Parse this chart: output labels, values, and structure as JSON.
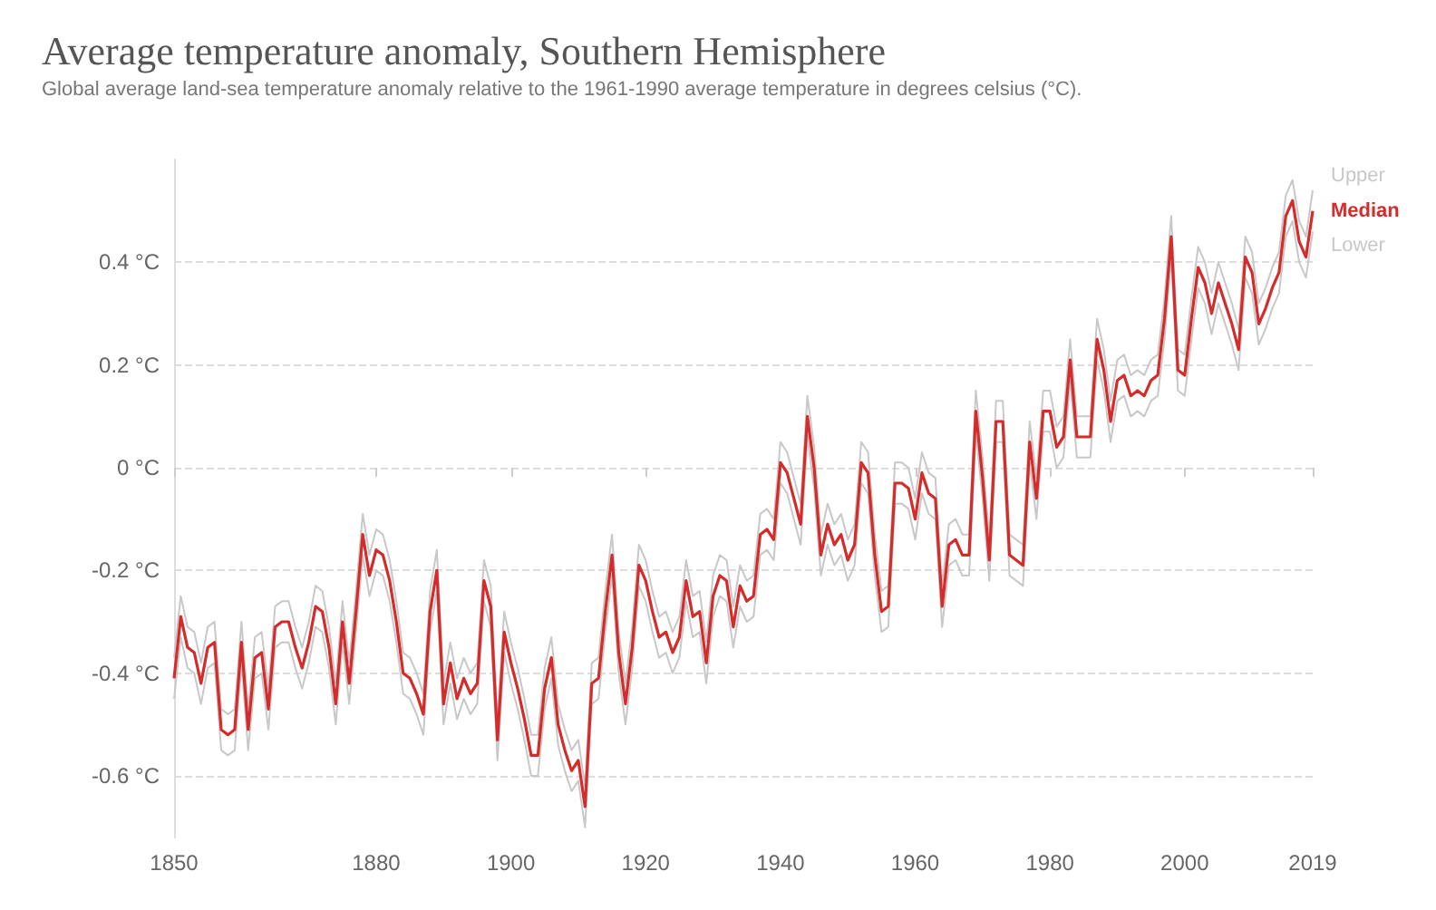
{
  "chart_data": {
    "type": "line",
    "title": "Average temperature anomaly, Southern Hemisphere",
    "subtitle": "Global average land-sea temperature anomaly relative to the 1961-1990 average temperature in degrees celsius (°C).",
    "x": [
      1850,
      1851,
      1852,
      1853,
      1854,
      1855,
      1856,
      1857,
      1858,
      1859,
      1860,
      1861,
      1862,
      1863,
      1864,
      1865,
      1866,
      1867,
      1868,
      1869,
      1870,
      1871,
      1872,
      1873,
      1874,
      1875,
      1876,
      1877,
      1878,
      1879,
      1880,
      1881,
      1882,
      1883,
      1884,
      1885,
      1886,
      1887,
      1888,
      1889,
      1890,
      1891,
      1892,
      1893,
      1894,
      1895,
      1896,
      1897,
      1898,
      1899,
      1900,
      1901,
      1902,
      1903,
      1904,
      1905,
      1906,
      1907,
      1908,
      1909,
      1910,
      1911,
      1912,
      1913,
      1914,
      1915,
      1916,
      1917,
      1918,
      1919,
      1920,
      1921,
      1922,
      1923,
      1924,
      1925,
      1926,
      1927,
      1928,
      1929,
      1930,
      1931,
      1932,
      1933,
      1934,
      1935,
      1936,
      1937,
      1938,
      1939,
      1940,
      1941,
      1942,
      1943,
      1944,
      1945,
      1946,
      1947,
      1948,
      1949,
      1950,
      1951,
      1952,
      1953,
      1954,
      1955,
      1956,
      1957,
      1958,
      1959,
      1960,
      1961,
      1962,
      1963,
      1964,
      1965,
      1966,
      1967,
      1968,
      1969,
      1970,
      1971,
      1972,
      1973,
      1974,
      1975,
      1976,
      1977,
      1978,
      1979,
      1980,
      1981,
      1982,
      1983,
      1984,
      1985,
      1986,
      1987,
      1988,
      1989,
      1990,
      1991,
      1992,
      1993,
      1994,
      1995,
      1996,
      1997,
      1998,
      1999,
      2000,
      2001,
      2002,
      2003,
      2004,
      2005,
      2006,
      2007,
      2008,
      2009,
      2010,
      2011,
      2012,
      2013,
      2014,
      2015,
      2016,
      2017,
      2018,
      2019
    ],
    "series": [
      {
        "name": "Upper",
        "color": "#c8c8c8",
        "values": [
          -0.37,
          -0.25,
          -0.31,
          -0.32,
          -0.38,
          -0.31,
          -0.3,
          -0.47,
          -0.48,
          -0.47,
          -0.3,
          -0.47,
          -0.33,
          -0.32,
          -0.43,
          -0.27,
          -0.26,
          -0.26,
          -0.31,
          -0.35,
          -0.3,
          -0.23,
          -0.24,
          -0.31,
          -0.42,
          -0.26,
          -0.38,
          -0.24,
          -0.09,
          -0.17,
          -0.12,
          -0.13,
          -0.18,
          -0.26,
          -0.36,
          -0.37,
          -0.4,
          -0.44,
          -0.24,
          -0.16,
          -0.42,
          -0.34,
          -0.41,
          -0.37,
          -0.4,
          -0.38,
          -0.18,
          -0.23,
          -0.49,
          -0.28,
          -0.34,
          -0.39,
          -0.45,
          -0.52,
          -0.52,
          -0.39,
          -0.33,
          -0.46,
          -0.51,
          -0.55,
          -0.53,
          -0.62,
          -0.38,
          -0.37,
          -0.24,
          -0.13,
          -0.32,
          -0.42,
          -0.31,
          -0.15,
          -0.18,
          -0.24,
          -0.29,
          -0.28,
          -0.32,
          -0.29,
          -0.18,
          -0.25,
          -0.24,
          -0.34,
          -0.21,
          -0.17,
          -0.18,
          -0.27,
          -0.19,
          -0.22,
          -0.21,
          -0.09,
          -0.08,
          -0.1,
          0.05,
          0.03,
          -0.02,
          -0.07,
          0.14,
          0.04,
          -0.13,
          -0.07,
          -0.11,
          -0.09,
          -0.14,
          -0.11,
          0.05,
          0.03,
          -0.13,
          -0.24,
          -0.23,
          0.01,
          0.01,
          0.0,
          -0.06,
          0.03,
          -0.01,
          -0.02,
          -0.23,
          -0.11,
          -0.1,
          -0.13,
          -0.13,
          0.15,
          0.02,
          -0.14,
          0.13,
          0.13,
          -0.13,
          -0.14,
          -0.15,
          0.09,
          -0.02,
          0.15,
          0.15,
          0.08,
          0.1,
          0.25,
          0.1,
          0.1,
          0.1,
          0.29,
          0.23,
          0.13,
          0.21,
          0.22,
          0.18,
          0.19,
          0.18,
          0.21,
          0.22,
          0.33,
          0.49,
          0.23,
          0.22,
          0.33,
          0.43,
          0.4,
          0.34,
          0.4,
          0.36,
          0.32,
          0.27,
          0.45,
          0.42,
          0.32,
          0.35,
          0.39,
          0.42,
          0.53,
          0.56,
          0.48,
          0.45,
          0.54
        ]
      },
      {
        "name": "Median",
        "color": "#d42b2b",
        "values": [
          -0.41,
          -0.29,
          -0.35,
          -0.36,
          -0.42,
          -0.35,
          -0.34,
          -0.51,
          -0.52,
          -0.51,
          -0.34,
          -0.51,
          -0.37,
          -0.36,
          -0.47,
          -0.31,
          -0.3,
          -0.3,
          -0.35,
          -0.39,
          -0.34,
          -0.27,
          -0.28,
          -0.35,
          -0.46,
          -0.3,
          -0.42,
          -0.28,
          -0.13,
          -0.21,
          -0.16,
          -0.17,
          -0.22,
          -0.3,
          -0.4,
          -0.41,
          -0.44,
          -0.48,
          -0.28,
          -0.2,
          -0.46,
          -0.38,
          -0.45,
          -0.41,
          -0.44,
          -0.42,
          -0.22,
          -0.27,
          -0.53,
          -0.32,
          -0.38,
          -0.43,
          -0.49,
          -0.56,
          -0.56,
          -0.43,
          -0.37,
          -0.5,
          -0.55,
          -0.59,
          -0.57,
          -0.66,
          -0.42,
          -0.41,
          -0.28,
          -0.17,
          -0.36,
          -0.46,
          -0.35,
          -0.19,
          -0.22,
          -0.28,
          -0.33,
          -0.32,
          -0.36,
          -0.33,
          -0.22,
          -0.29,
          -0.28,
          -0.38,
          -0.25,
          -0.21,
          -0.22,
          -0.31,
          -0.23,
          -0.26,
          -0.25,
          -0.13,
          -0.12,
          -0.14,
          0.01,
          -0.01,
          -0.06,
          -0.11,
          0.1,
          0.0,
          -0.17,
          -0.11,
          -0.15,
          -0.13,
          -0.18,
          -0.15,
          0.01,
          -0.01,
          -0.17,
          -0.28,
          -0.27,
          -0.03,
          -0.03,
          -0.04,
          -0.1,
          -0.01,
          -0.05,
          -0.06,
          -0.27,
          -0.15,
          -0.14,
          -0.17,
          -0.17,
          0.11,
          -0.02,
          -0.18,
          0.09,
          0.09,
          -0.17,
          -0.18,
          -0.19,
          0.05,
          -0.06,
          0.11,
          0.11,
          0.04,
          0.06,
          0.21,
          0.06,
          0.06,
          0.06,
          0.25,
          0.19,
          0.09,
          0.17,
          0.18,
          0.14,
          0.15,
          0.14,
          0.17,
          0.18,
          0.29,
          0.45,
          0.19,
          0.18,
          0.29,
          0.39,
          0.36,
          0.3,
          0.36,
          0.32,
          0.28,
          0.23,
          0.41,
          0.38,
          0.28,
          0.31,
          0.35,
          0.38,
          0.49,
          0.52,
          0.44,
          0.41,
          0.5
        ]
      },
      {
        "name": "Lower",
        "color": "#c8c8c8",
        "values": [
          -0.45,
          -0.33,
          -0.39,
          -0.4,
          -0.46,
          -0.39,
          -0.38,
          -0.55,
          -0.56,
          -0.55,
          -0.38,
          -0.55,
          -0.41,
          -0.4,
          -0.51,
          -0.35,
          -0.34,
          -0.34,
          -0.39,
          -0.43,
          -0.38,
          -0.31,
          -0.32,
          -0.39,
          -0.5,
          -0.34,
          -0.46,
          -0.32,
          -0.17,
          -0.25,
          -0.2,
          -0.21,
          -0.26,
          -0.34,
          -0.44,
          -0.45,
          -0.48,
          -0.52,
          -0.32,
          -0.24,
          -0.5,
          -0.42,
          -0.49,
          -0.45,
          -0.48,
          -0.46,
          -0.26,
          -0.31,
          -0.57,
          -0.36,
          -0.42,
          -0.47,
          -0.53,
          -0.6,
          -0.6,
          -0.47,
          -0.41,
          -0.54,
          -0.59,
          -0.63,
          -0.61,
          -0.7,
          -0.46,
          -0.45,
          -0.32,
          -0.21,
          -0.4,
          -0.5,
          -0.39,
          -0.23,
          -0.26,
          -0.32,
          -0.37,
          -0.36,
          -0.4,
          -0.37,
          -0.26,
          -0.33,
          -0.32,
          -0.42,
          -0.29,
          -0.25,
          -0.26,
          -0.35,
          -0.27,
          -0.3,
          -0.29,
          -0.17,
          -0.16,
          -0.18,
          -0.03,
          -0.05,
          -0.1,
          -0.15,
          0.06,
          -0.04,
          -0.21,
          -0.15,
          -0.19,
          -0.17,
          -0.22,
          -0.19,
          -0.03,
          -0.05,
          -0.21,
          -0.32,
          -0.31,
          -0.07,
          -0.07,
          -0.08,
          -0.14,
          -0.05,
          -0.09,
          -0.1,
          -0.31,
          -0.19,
          -0.18,
          -0.21,
          -0.21,
          0.07,
          -0.06,
          -0.22,
          0.05,
          0.05,
          -0.21,
          -0.22,
          -0.23,
          0.01,
          -0.1,
          0.07,
          0.07,
          0.0,
          0.02,
          0.17,
          0.02,
          0.02,
          0.02,
          0.21,
          0.15,
          0.05,
          0.13,
          0.14,
          0.1,
          0.11,
          0.1,
          0.13,
          0.14,
          0.25,
          0.41,
          0.15,
          0.14,
          0.25,
          0.35,
          0.32,
          0.26,
          0.32,
          0.28,
          0.24,
          0.19,
          0.37,
          0.34,
          0.24,
          0.27,
          0.31,
          0.34,
          0.45,
          0.48,
          0.4,
          0.37,
          0.46
        ]
      }
    ],
    "xlim": [
      1850,
      2019
    ],
    "xticks": [
      1850,
      1880,
      1900,
      1920,
      1940,
      1960,
      1980,
      2000,
      2019
    ],
    "ylim": [
      -0.72,
      0.6
    ],
    "yticks": [
      {
        "value": -0.6,
        "label": "-0.6 °C"
      },
      {
        "value": -0.4,
        "label": "-0.4 °C"
      },
      {
        "value": -0.2,
        "label": "-0.2 °C"
      },
      {
        "value": 0,
        "label": "0 °C"
      },
      {
        "value": 0.2,
        "label": "0.2 °C"
      },
      {
        "value": 0.4,
        "label": "0.4 °C"
      }
    ],
    "grid": "y",
    "legend": false,
    "marker": "none",
    "line_style": "solid"
  }
}
